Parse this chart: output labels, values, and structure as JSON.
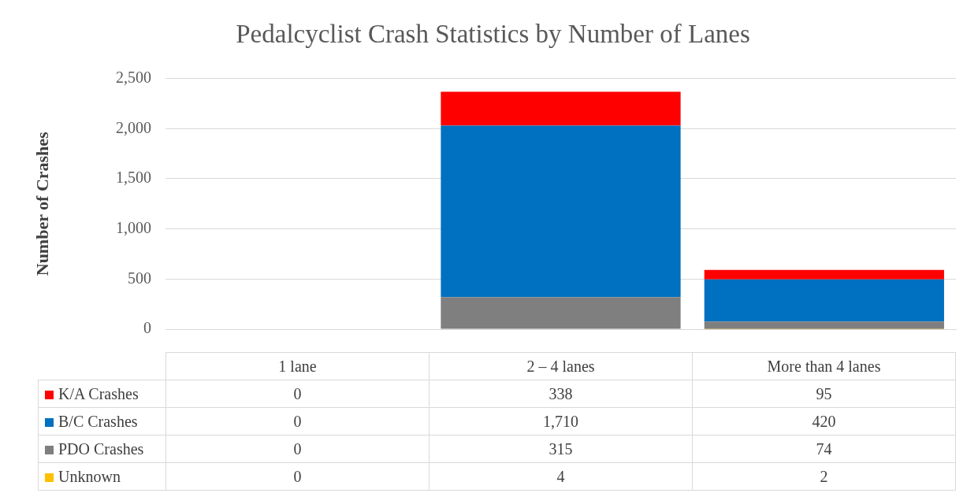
{
  "chart_data": {
    "type": "bar",
    "title": "Pedalcyclist Crash Statistics by Number of Lanes",
    "ylabel": "Number of Crashes",
    "categories": [
      "1 lane",
      "2 – 4 lanes",
      "More than 4 lanes"
    ],
    "stacked": true,
    "series": [
      {
        "name": "Unknown",
        "color": "#ffc000",
        "values": [
          0,
          4,
          2
        ],
        "value_labels": [
          "0",
          "4",
          "2"
        ]
      },
      {
        "name": "PDO Crashes",
        "color": "#7f7f7f",
        "values": [
          0,
          315,
          74
        ],
        "value_labels": [
          "0",
          "315",
          "74"
        ]
      },
      {
        "name": "B/C Crashes",
        "color": "#0070c0",
        "values": [
          0,
          1710,
          420
        ],
        "value_labels": [
          "0",
          "1,710",
          "420"
        ]
      },
      {
        "name": "K/A Crashes",
        "color": "#ff0000",
        "values": [
          0,
          338,
          95
        ],
        "value_labels": [
          "0",
          "338",
          "95"
        ]
      }
    ],
    "ylim": [
      0,
      2500
    ],
    "yticks": [
      0,
      500,
      {
        "value": 1000,
        "label": "1,000"
      },
      {
        "value": 1500,
        "label": "1,500"
      },
      {
        "value": 2000,
        "label": "2,000"
      },
      {
        "value": 2500,
        "label": "2,500"
      }
    ],
    "grid": "y",
    "legend": "bottom"
  }
}
